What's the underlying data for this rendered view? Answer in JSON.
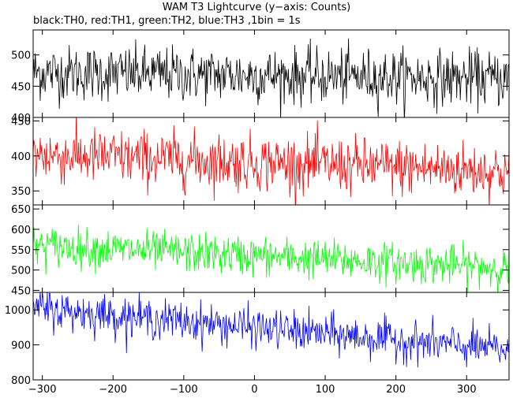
{
  "chart_data": {
    "type": "line",
    "title": "WAM T3 Lightcurve (y−axis: Counts)",
    "subtitle": "black:TH0, red:TH1, green:TH2, blue:TH3 ,1bin = 1s",
    "xlabel": "",
    "ylabel": "",
    "x_range": [
      -313,
      360
    ],
    "x_ticks": [
      -300,
      -200,
      -100,
      0,
      100,
      200,
      300
    ],
    "x_tick_labels": [
      "−300",
      "−200",
      "−100",
      "0",
      "100",
      "200",
      "300"
    ],
    "bin_seconds": 1,
    "grid": false,
    "panels": [
      {
        "name": "TH0",
        "color": "#000000",
        "ylim": [
          400,
          540
        ],
        "y_ticks": [
          400,
          450,
          500
        ],
        "y_tick_labels": [
          "400",
          "450",
          "500"
        ],
        "trend": {
          "start": 472,
          "end": 462
        },
        "noise_sd": 22
      },
      {
        "name": "TH1",
        "color": "#ff0000",
        "ylim": [
          330,
          455
        ],
        "y_ticks": [
          350,
          400,
          450
        ],
        "y_tick_labels": [
          "350",
          "400",
          "450"
        ],
        "trend": {
          "start": 402,
          "end": 378
        },
        "noise_sd": 20
      },
      {
        "name": "TH2",
        "color": "#00ff00",
        "ylim": [
          445,
          660
        ],
        "y_ticks": [
          450,
          500,
          550,
          600,
          650
        ],
        "y_tick_labels": [
          "450",
          "500",
          "550",
          "600",
          "650"
        ],
        "trend": {
          "start": 560,
          "end": 505
        },
        "noise_sd": 24
      },
      {
        "name": "TH3",
        "color": "#0000ff",
        "ylim": [
          800,
          1050
        ],
        "y_ticks": [
          800,
          900,
          1000
        ],
        "y_tick_labels": [
          "800",
          "900",
          "1000"
        ],
        "trend": {
          "start": 1005,
          "end": 885
        },
        "noise_sd": 28
      }
    ]
  }
}
